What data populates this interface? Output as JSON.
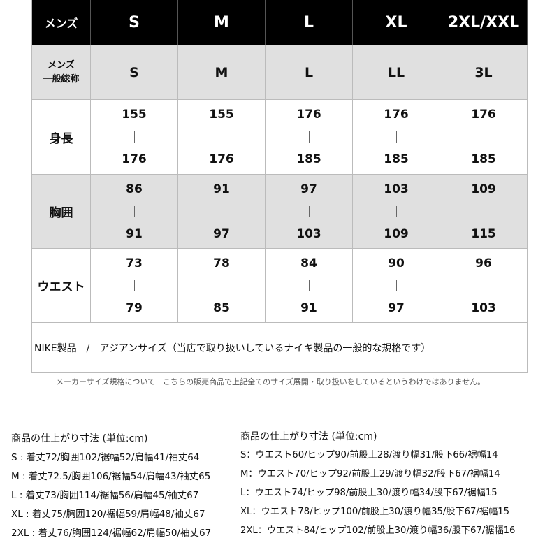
{
  "table": {
    "header": [
      "メンズ",
      "S",
      "M",
      "L",
      "XL",
      "2XL/XXL"
    ],
    "general": {
      "label": [
        "メンズ",
        "一般総称"
      ],
      "cells": [
        "S",
        "M",
        "L",
        "LL",
        "3L"
      ]
    },
    "rows": [
      {
        "label": "身長",
        "cells": [
          [
            "155",
            "176"
          ],
          [
            "155",
            "176"
          ],
          [
            "176",
            "185"
          ],
          [
            "176",
            "185"
          ],
          [
            "176",
            "185"
          ]
        ]
      },
      {
        "label": "胸囲",
        "cells": [
          [
            "86",
            "91"
          ],
          [
            "91",
            "97"
          ],
          [
            "97",
            "103"
          ],
          [
            "103",
            "109"
          ],
          [
            "109",
            "115"
          ]
        ]
      },
      {
        "label": "ウエスト",
        "cells": [
          [
            "73",
            "79"
          ],
          [
            "78",
            "85"
          ],
          [
            "84",
            "91"
          ],
          [
            "90",
            "97"
          ],
          [
            "96",
            "103"
          ]
        ]
      }
    ],
    "note": "NIKE製品　/　アジアンサイズ（当店で取り扱いしているナイキ製品の一般的な規格です）"
  },
  "footnote": "メーカーサイズ規格について　こちらの販売商品で上記全てのサイズ展開・取り扱いをしているというわけではありません。",
  "specs": [
    {
      "title": "商品の仕上がり寸法 (単位:cm)",
      "lines": [
        "S : 着丈72/胸囲102/裾幅52/肩幅41/袖丈64",
        "M : 着丈72.5/胸囲106/裾幅54/肩幅43/袖丈65",
        "L : 着丈73/胸囲114/裾幅56/肩幅45/袖丈67",
        "XL : 着丈75/胸囲120/裾幅59/肩幅48/袖丈67",
        "2XL : 着丈76/胸囲124/裾幅62/肩幅50/袖丈67"
      ]
    },
    {
      "title": "商品の仕上がり寸法 (単位:cm)",
      "lines": [
        "S：ウエスト60/ヒップ90/前股上28/渡り幅31/股下66/裾幅14",
        "M：ウエスト70/ヒップ92/前股上29/渡り幅32/股下67/裾幅14",
        "L：ウエスト74/ヒップ98/前股上30/渡り幅34/股下67/裾幅15",
        "XL：ウエスト78/ヒップ100/前股上30/渡り幅35/股下67/裾幅15",
        "2XL：ウエスト84/ヒップ102/前股上30/渡り幅36/股下67/裾幅16"
      ]
    }
  ]
}
